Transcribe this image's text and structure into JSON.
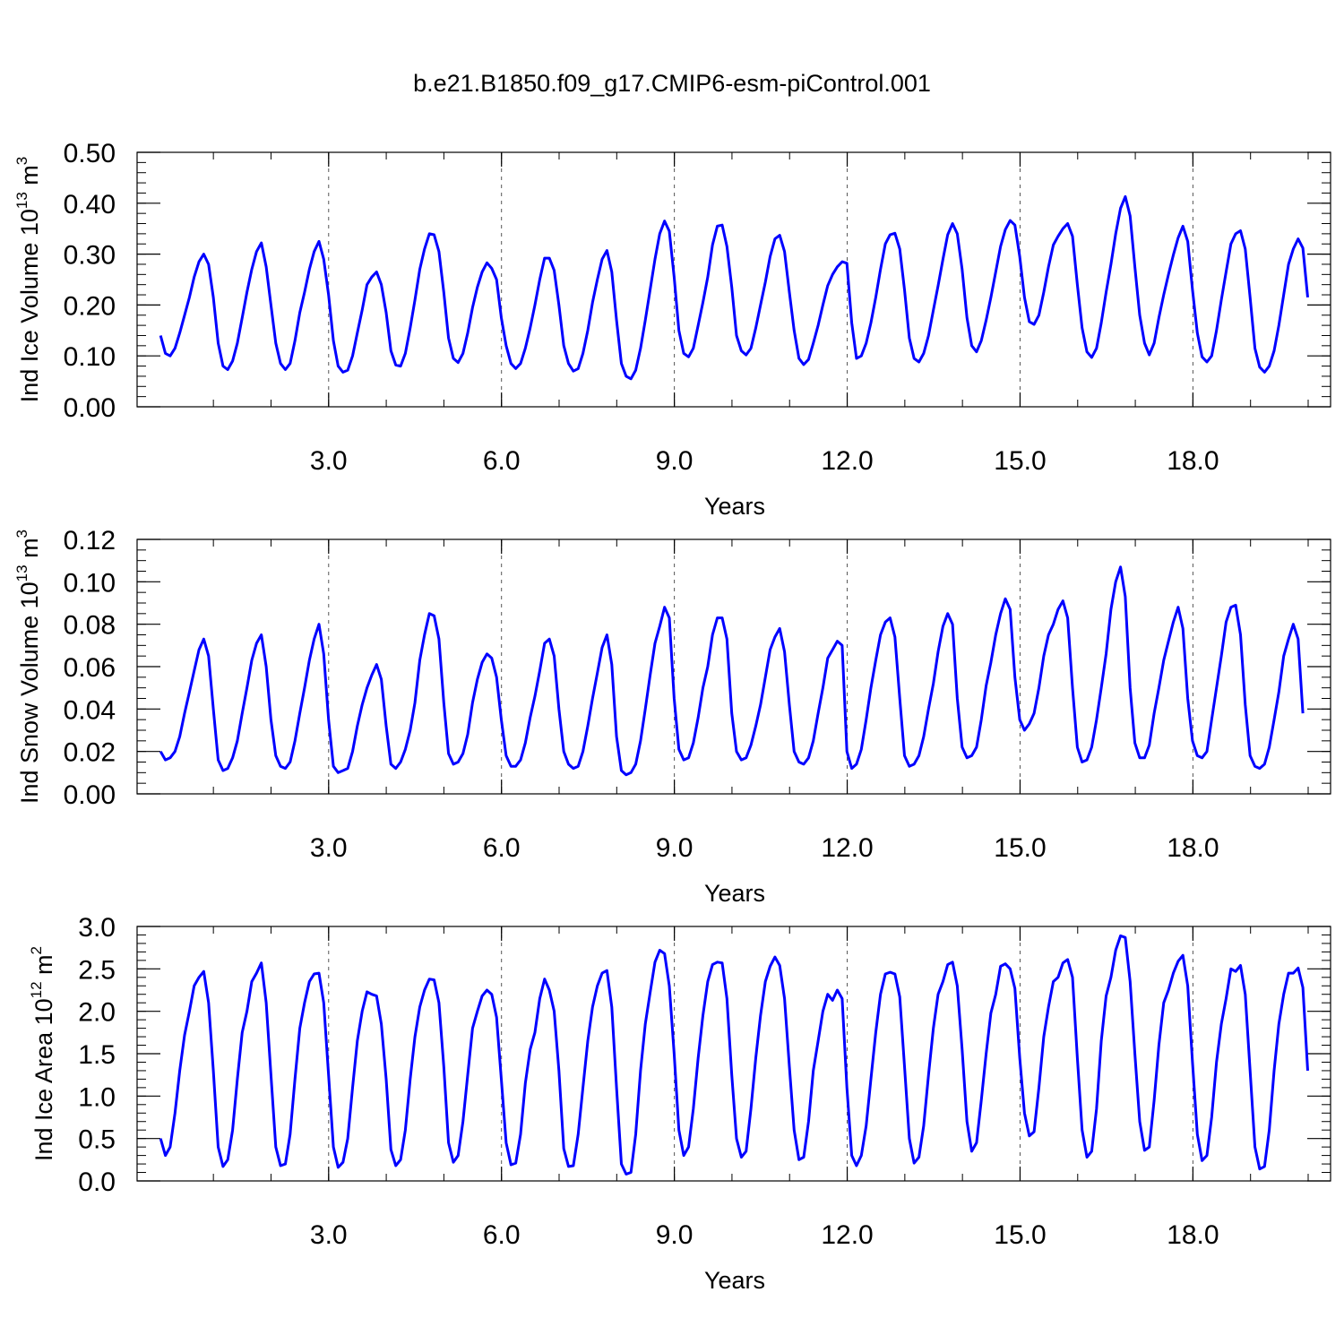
{
  "title": "b.e21.B1850.f09_g17.CMIP6-esm-piControl.001",
  "colors": {
    "line": "#0000ff",
    "axis": "#000000",
    "grid": "#555555"
  },
  "chart_data": [
    {
      "type": "line",
      "title": "b.e21.B1850.f09_g17.CMIP6-esm-piControl.001",
      "xlabel": "Years",
      "ylabel": {
        "main": "Ind Ice Volume 10",
        "exp": "13",
        "unit": " m",
        "unit_exp": "3"
      },
      "xlim": [
        0.08,
        20.0
      ],
      "ylim": [
        0.0,
        0.5
      ],
      "xticks": [
        3.0,
        6.0,
        9.0,
        12.0,
        15.0,
        18.0
      ],
      "xtick_labels": [
        "3.0",
        "6.0",
        "9.0",
        "12.0",
        "15.0",
        "18.0"
      ],
      "yticks": [
        0.0,
        0.1,
        0.2,
        0.3,
        0.4,
        0.5
      ],
      "ytick_labels": [
        "0.00",
        "0.10",
        "0.20",
        "0.30",
        "0.40",
        "0.50"
      ],
      "y_minor_step": 0.02,
      "grid": "dashed vertical at major x ticks",
      "series": [
        {
          "x_start": 0.0833,
          "x_step": 0.0833,
          "values": [
            0.14,
            0.105,
            0.1,
            0.115,
            0.145,
            0.18,
            0.215,
            0.255,
            0.285,
            0.3,
            0.28,
            0.215,
            0.125,
            0.08,
            0.073,
            0.09,
            0.125,
            0.175,
            0.225,
            0.27,
            0.305,
            0.322,
            0.275,
            0.2,
            0.125,
            0.085,
            0.073,
            0.085,
            0.13,
            0.185,
            0.225,
            0.27,
            0.305,
            0.325,
            0.29,
            0.22,
            0.13,
            0.08,
            0.068,
            0.072,
            0.1,
            0.145,
            0.19,
            0.24,
            0.255,
            0.265,
            0.24,
            0.185,
            0.11,
            0.082,
            0.08,
            0.105,
            0.155,
            0.21,
            0.27,
            0.31,
            0.34,
            0.338,
            0.305,
            0.225,
            0.135,
            0.095,
            0.087,
            0.105,
            0.145,
            0.195,
            0.235,
            0.265,
            0.283,
            0.272,
            0.25,
            0.175,
            0.12,
            0.085,
            0.075,
            0.085,
            0.115,
            0.155,
            0.2,
            0.25,
            0.292,
            0.292,
            0.268,
            0.2,
            0.12,
            0.085,
            0.07,
            0.075,
            0.105,
            0.15,
            0.205,
            0.25,
            0.29,
            0.307,
            0.265,
            0.17,
            0.085,
            0.06,
            0.055,
            0.072,
            0.115,
            0.17,
            0.23,
            0.29,
            0.34,
            0.365,
            0.345,
            0.255,
            0.15,
            0.105,
            0.098,
            0.115,
            0.16,
            0.205,
            0.255,
            0.318,
            0.355,
            0.357,
            0.315,
            0.235,
            0.14,
            0.11,
            0.102,
            0.115,
            0.155,
            0.2,
            0.245,
            0.295,
            0.33,
            0.337,
            0.305,
            0.225,
            0.15,
            0.095,
            0.083,
            0.093,
            0.125,
            0.16,
            0.2,
            0.238,
            0.26,
            0.275,
            0.285,
            0.282,
            0.165,
            0.095,
            0.1,
            0.125,
            0.165,
            0.215,
            0.27,
            0.32,
            0.338,
            0.341,
            0.31,
            0.23,
            0.135,
            0.095,
            0.088,
            0.105,
            0.14,
            0.19,
            0.238,
            0.29,
            0.338,
            0.36,
            0.34,
            0.27,
            0.175,
            0.12,
            0.108,
            0.13,
            0.17,
            0.215,
            0.265,
            0.315,
            0.348,
            0.366,
            0.357,
            0.295,
            0.215,
            0.167,
            0.162,
            0.18,
            0.225,
            0.275,
            0.318,
            0.335,
            0.35,
            0.36,
            0.335,
            0.24,
            0.155,
            0.108,
            0.097,
            0.115,
            0.165,
            0.225,
            0.28,
            0.34,
            0.39,
            0.413,
            0.375,
            0.275,
            0.18,
            0.125,
            0.102,
            0.125,
            0.175,
            0.22,
            0.26,
            0.298,
            0.332,
            0.355,
            0.325,
            0.23,
            0.145,
            0.098,
            0.088,
            0.1,
            0.15,
            0.21,
            0.265,
            0.32,
            0.34,
            0.346,
            0.31,
            0.215,
            0.115,
            0.078,
            0.068,
            0.08,
            0.11,
            0.16,
            0.22,
            0.28,
            0.31,
            0.33,
            0.312,
            0.215
          ]
        }
      ]
    },
    {
      "type": "line",
      "xlabel": "Years",
      "ylabel": {
        "main": "Ind Snow Volume 10",
        "exp": "13",
        "unit": " m",
        "unit_exp": "3"
      },
      "xlim": [
        0.08,
        20.0
      ],
      "ylim": [
        0.0,
        0.12
      ],
      "xticks": [
        3.0,
        6.0,
        9.0,
        12.0,
        15.0,
        18.0
      ],
      "xtick_labels": [
        "3.0",
        "6.0",
        "9.0",
        "12.0",
        "15.0",
        "18.0"
      ],
      "yticks": [
        0.0,
        0.02,
        0.04,
        0.06,
        0.08,
        0.1,
        0.12
      ],
      "ytick_labels": [
        "0.00",
        "0.02",
        "0.04",
        "0.06",
        "0.08",
        "0.10",
        "0.12"
      ],
      "y_minor_step": 0.005,
      "grid": "dashed vertical at major x ticks",
      "series": [
        {
          "x_start": 0.0833,
          "x_step": 0.0833,
          "values": [
            0.02,
            0.016,
            0.017,
            0.02,
            0.027,
            0.038,
            0.048,
            0.058,
            0.068,
            0.073,
            0.065,
            0.04,
            0.016,
            0.011,
            0.012,
            0.017,
            0.025,
            0.038,
            0.05,
            0.063,
            0.071,
            0.075,
            0.06,
            0.035,
            0.018,
            0.013,
            0.012,
            0.015,
            0.025,
            0.038,
            0.05,
            0.063,
            0.073,
            0.08,
            0.066,
            0.035,
            0.013,
            0.01,
            0.011,
            0.012,
            0.02,
            0.032,
            0.042,
            0.05,
            0.056,
            0.061,
            0.054,
            0.032,
            0.014,
            0.012,
            0.015,
            0.021,
            0.03,
            0.043,
            0.063,
            0.075,
            0.085,
            0.084,
            0.073,
            0.043,
            0.019,
            0.014,
            0.015,
            0.019,
            0.028,
            0.043,
            0.054,
            0.062,
            0.066,
            0.064,
            0.055,
            0.035,
            0.018,
            0.013,
            0.013,
            0.016,
            0.024,
            0.036,
            0.046,
            0.058,
            0.071,
            0.073,
            0.065,
            0.04,
            0.02,
            0.014,
            0.012,
            0.013,
            0.02,
            0.032,
            0.045,
            0.057,
            0.069,
            0.075,
            0.061,
            0.027,
            0.011,
            0.009,
            0.01,
            0.014,
            0.025,
            0.04,
            0.056,
            0.071,
            0.079,
            0.088,
            0.083,
            0.045,
            0.021,
            0.016,
            0.017,
            0.024,
            0.036,
            0.05,
            0.06,
            0.075,
            0.083,
            0.083,
            0.073,
            0.038,
            0.02,
            0.016,
            0.017,
            0.023,
            0.032,
            0.042,
            0.055,
            0.068,
            0.074,
            0.078,
            0.067,
            0.042,
            0.02,
            0.015,
            0.014,
            0.017,
            0.025,
            0.038,
            0.05,
            0.064,
            0.068,
            0.072,
            0.07,
            0.02,
            0.012,
            0.014,
            0.021,
            0.035,
            0.05,
            0.063,
            0.075,
            0.081,
            0.083,
            0.074,
            0.045,
            0.018,
            0.013,
            0.014,
            0.018,
            0.027,
            0.04,
            0.052,
            0.067,
            0.079,
            0.085,
            0.08,
            0.045,
            0.022,
            0.017,
            0.018,
            0.022,
            0.035,
            0.051,
            0.062,
            0.075,
            0.085,
            0.092,
            0.087,
            0.055,
            0.035,
            0.03,
            0.033,
            0.038,
            0.05,
            0.065,
            0.075,
            0.08,
            0.087,
            0.091,
            0.083,
            0.05,
            0.022,
            0.015,
            0.016,
            0.022,
            0.035,
            0.05,
            0.066,
            0.087,
            0.1,
            0.107,
            0.093,
            0.05,
            0.024,
            0.017,
            0.017,
            0.023,
            0.038,
            0.05,
            0.063,
            0.072,
            0.081,
            0.088,
            0.078,
            0.045,
            0.025,
            0.018,
            0.017,
            0.02,
            0.035,
            0.05,
            0.065,
            0.081,
            0.088,
            0.089,
            0.075,
            0.042,
            0.018,
            0.013,
            0.012,
            0.014,
            0.022,
            0.035,
            0.048,
            0.065,
            0.073,
            0.08,
            0.073,
            0.038
          ]
        }
      ]
    },
    {
      "type": "line",
      "xlabel": "Years",
      "ylabel": {
        "main": "Ind Ice Area 10",
        "exp": "12",
        "unit": " m",
        "unit_exp": "2"
      },
      "xlim": [
        0.08,
        20.0
      ],
      "ylim": [
        0.0,
        3.0
      ],
      "xticks": [
        3.0,
        6.0,
        9.0,
        12.0,
        15.0,
        18.0
      ],
      "xtick_labels": [
        "3.0",
        "6.0",
        "9.0",
        "12.0",
        "15.0",
        "18.0"
      ],
      "yticks": [
        0.0,
        0.5,
        1.0,
        1.5,
        2.0,
        2.5,
        3.0
      ],
      "ytick_labels": [
        "0.0",
        "0.5",
        "1.0",
        "1.5",
        "2.0",
        "2.5",
        "3.0"
      ],
      "y_minor_step": 0.1,
      "grid": "dashed vertical at major x ticks",
      "series": [
        {
          "x_start": 0.0833,
          "x_step": 0.0833,
          "values": [
            0.5,
            0.3,
            0.4,
            0.8,
            1.3,
            1.72,
            2.0,
            2.3,
            2.4,
            2.47,
            2.1,
            1.3,
            0.4,
            0.17,
            0.25,
            0.6,
            1.2,
            1.75,
            2.0,
            2.35,
            2.45,
            2.57,
            2.1,
            1.25,
            0.4,
            0.18,
            0.2,
            0.55,
            1.2,
            1.8,
            2.1,
            2.35,
            2.44,
            2.45,
            2.1,
            1.25,
            0.4,
            0.16,
            0.22,
            0.5,
            1.1,
            1.65,
            2.0,
            2.23,
            2.2,
            2.18,
            1.85,
            1.2,
            0.37,
            0.18,
            0.25,
            0.6,
            1.2,
            1.7,
            2.05,
            2.25,
            2.38,
            2.37,
            2.1,
            1.35,
            0.45,
            0.22,
            0.3,
            0.7,
            1.25,
            1.8,
            2.0,
            2.18,
            2.25,
            2.2,
            1.93,
            1.2,
            0.45,
            0.19,
            0.21,
            0.55,
            1.15,
            1.55,
            1.75,
            2.15,
            2.38,
            2.25,
            2.0,
            1.3,
            0.38,
            0.17,
            0.18,
            0.55,
            1.1,
            1.65,
            2.05,
            2.3,
            2.45,
            2.48,
            2.05,
            1.1,
            0.2,
            0.08,
            0.1,
            0.55,
            1.3,
            1.85,
            2.22,
            2.58,
            2.72,
            2.68,
            2.3,
            1.5,
            0.6,
            0.3,
            0.4,
            0.85,
            1.45,
            1.95,
            2.35,
            2.55,
            2.58,
            2.57,
            2.15,
            1.25,
            0.5,
            0.28,
            0.35,
            0.85,
            1.45,
            1.95,
            2.35,
            2.53,
            2.64,
            2.54,
            2.15,
            1.35,
            0.6,
            0.25,
            0.28,
            0.7,
            1.3,
            1.65,
            2.0,
            2.2,
            2.13,
            2.25,
            2.15,
            1.1,
            0.3,
            0.18,
            0.3,
            0.65,
            1.2,
            1.75,
            2.2,
            2.44,
            2.46,
            2.44,
            2.17,
            1.35,
            0.5,
            0.21,
            0.28,
            0.65,
            1.25,
            1.8,
            2.2,
            2.35,
            2.55,
            2.58,
            2.3,
            1.55,
            0.7,
            0.35,
            0.45,
            0.95,
            1.5,
            1.98,
            2.2,
            2.53,
            2.56,
            2.5,
            2.27,
            1.45,
            0.8,
            0.53,
            0.58,
            1.1,
            1.7,
            2.05,
            2.35,
            2.4,
            2.57,
            2.61,
            2.4,
            1.45,
            0.6,
            0.28,
            0.35,
            0.85,
            1.65,
            2.18,
            2.4,
            2.72,
            2.89,
            2.87,
            2.35,
            1.5,
            0.7,
            0.36,
            0.4,
            0.95,
            1.6,
            2.1,
            2.25,
            2.45,
            2.59,
            2.66,
            2.3,
            1.4,
            0.55,
            0.24,
            0.3,
            0.75,
            1.4,
            1.85,
            2.15,
            2.5,
            2.47,
            2.54,
            2.2,
            1.3,
            0.4,
            0.14,
            0.17,
            0.6,
            1.3,
            1.85,
            2.2,
            2.45,
            2.45,
            2.51,
            2.28,
            1.3
          ]
        }
      ]
    }
  ]
}
